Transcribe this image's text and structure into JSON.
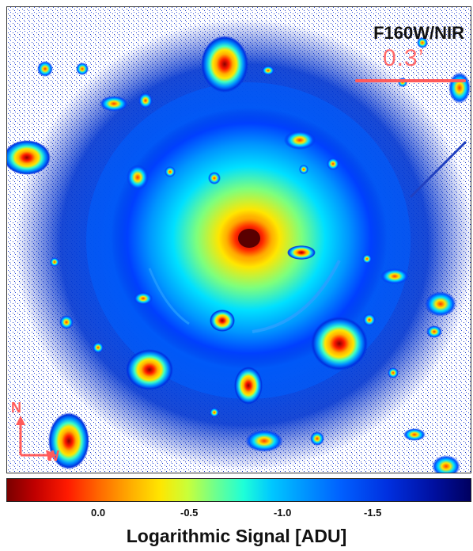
{
  "image": {
    "filter_label": "F160W/NIR",
    "scale_label": "0.3’",
    "compass": {
      "north": "N",
      "west": "W"
    }
  },
  "colorbar": {
    "ticks": [
      "0.0",
      "-0.5",
      "-1.0",
      "-1.5"
    ],
    "title": "Logarithmic Signal [ADU]",
    "colors": [
      "#7a0000",
      "#ff1a00",
      "#ffb000",
      "#ffe600",
      "#6dff8f",
      "#1effd8",
      "#0096ff",
      "#0030e0",
      "#000060"
    ]
  }
}
